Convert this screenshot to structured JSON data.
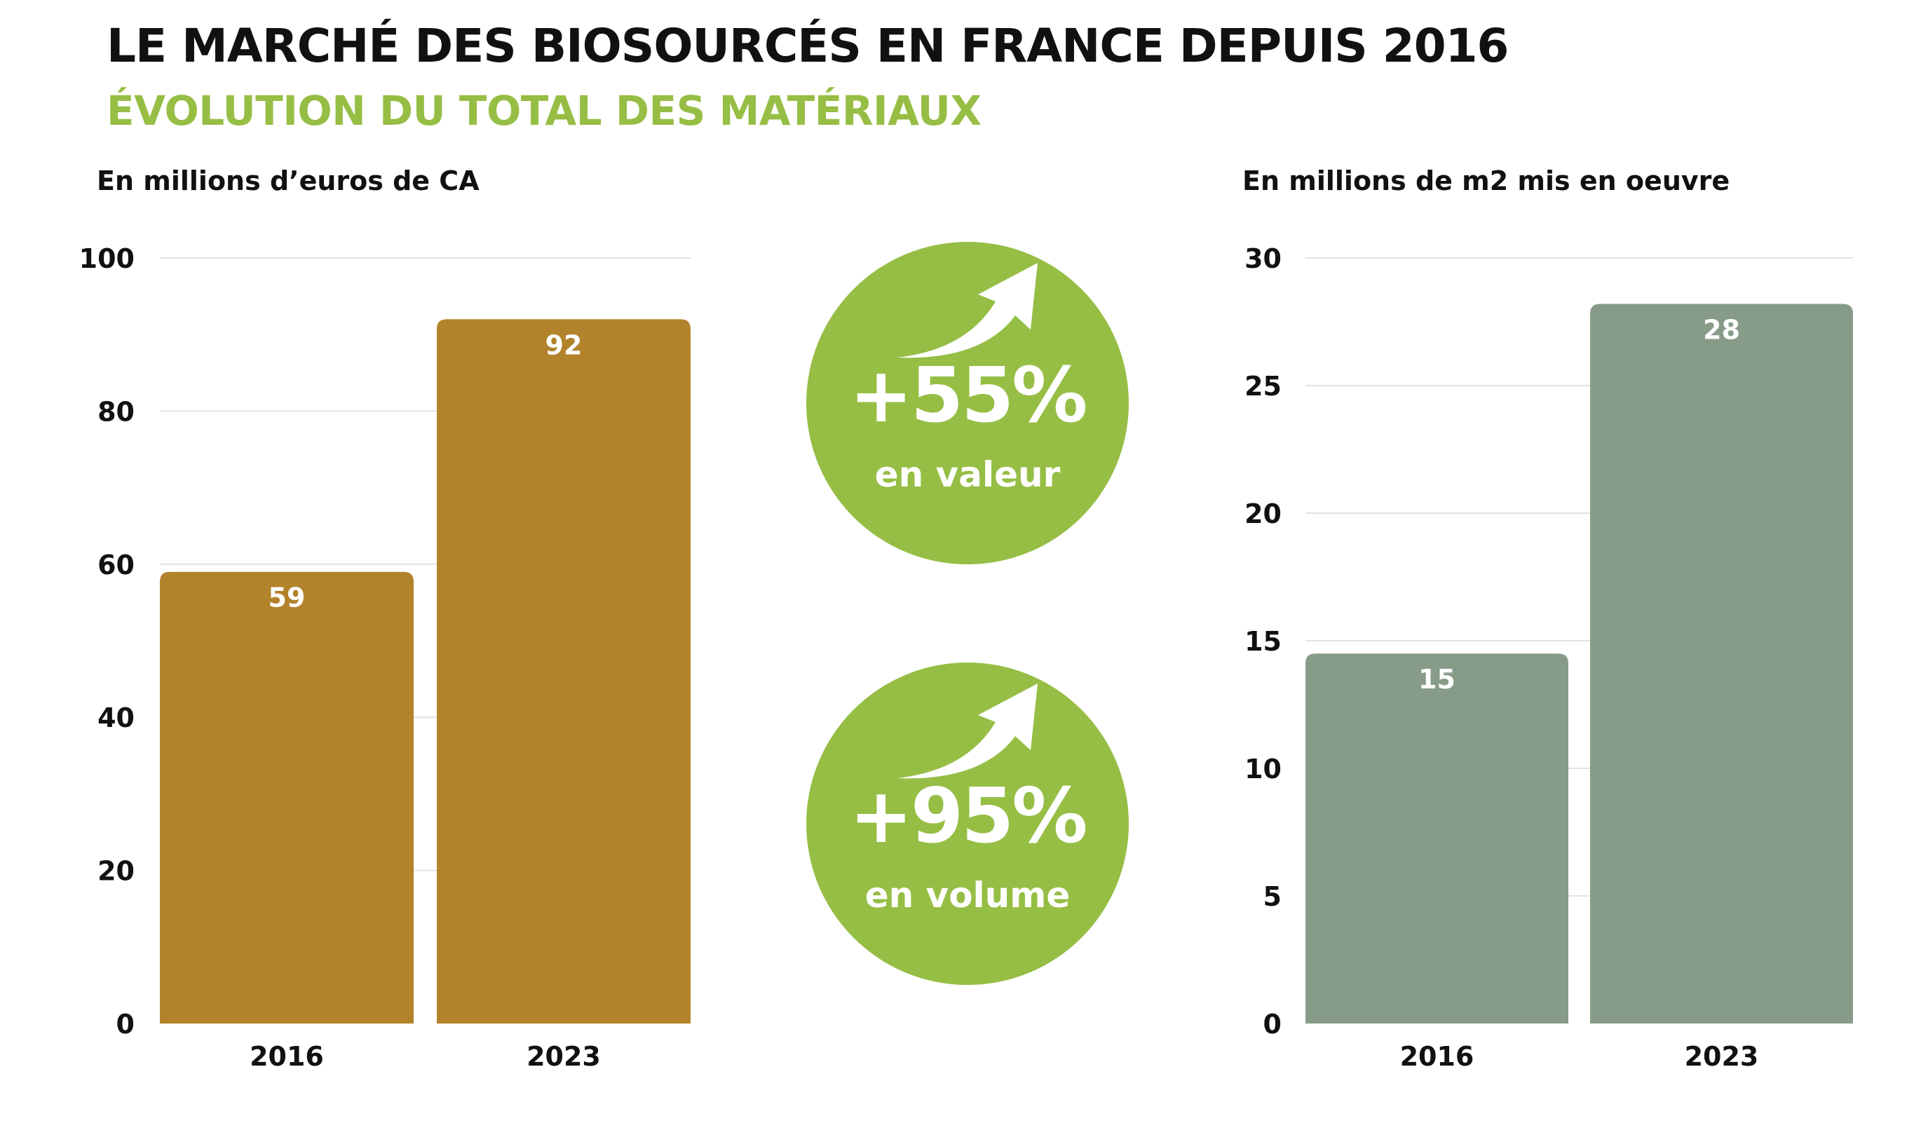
{
  "title": "LE MARCHÉ DES BIOSOURCÉS EN FRANCE DEPUIS 2016",
  "subtitle": "ÉVOLUTION DU TOTAL DES MATÉRIAUX",
  "badges": {
    "value": {
      "percent": "+55%",
      "label": "en valeur",
      "icon": "arrow-up-right-icon"
    },
    "volume": {
      "percent": "+95%",
      "label": "en volume",
      "icon": "arrow-up-right-icon"
    }
  },
  "colors": {
    "value_bars": "#b3832b",
    "volume_bars": "#879c88",
    "accent": "#96be45",
    "grid": "#e3e3e3"
  },
  "chart_data": [
    {
      "type": "bar",
      "title": "",
      "ylabel": "En millions d’euros de CA",
      "xlabel": "",
      "categories": [
        "2016",
        "2023"
      ],
      "values": [
        59,
        92
      ],
      "data_labels": [
        "59",
        "92"
      ],
      "ylim": [
        0,
        100
      ],
      "yticks": [
        0,
        20,
        40,
        60,
        80,
        100
      ],
      "grid": true
    },
    {
      "type": "bar",
      "title": "",
      "ylabel": "En millions de m2 mis en oeuvre",
      "xlabel": "",
      "categories": [
        "2016",
        "2023"
      ],
      "values": [
        14.5,
        28.2
      ],
      "data_labels": [
        "15",
        "28"
      ],
      "ylim": [
        0,
        30
      ],
      "yticks": [
        0,
        5,
        10,
        15,
        20,
        25,
        30
      ],
      "grid": true
    }
  ]
}
